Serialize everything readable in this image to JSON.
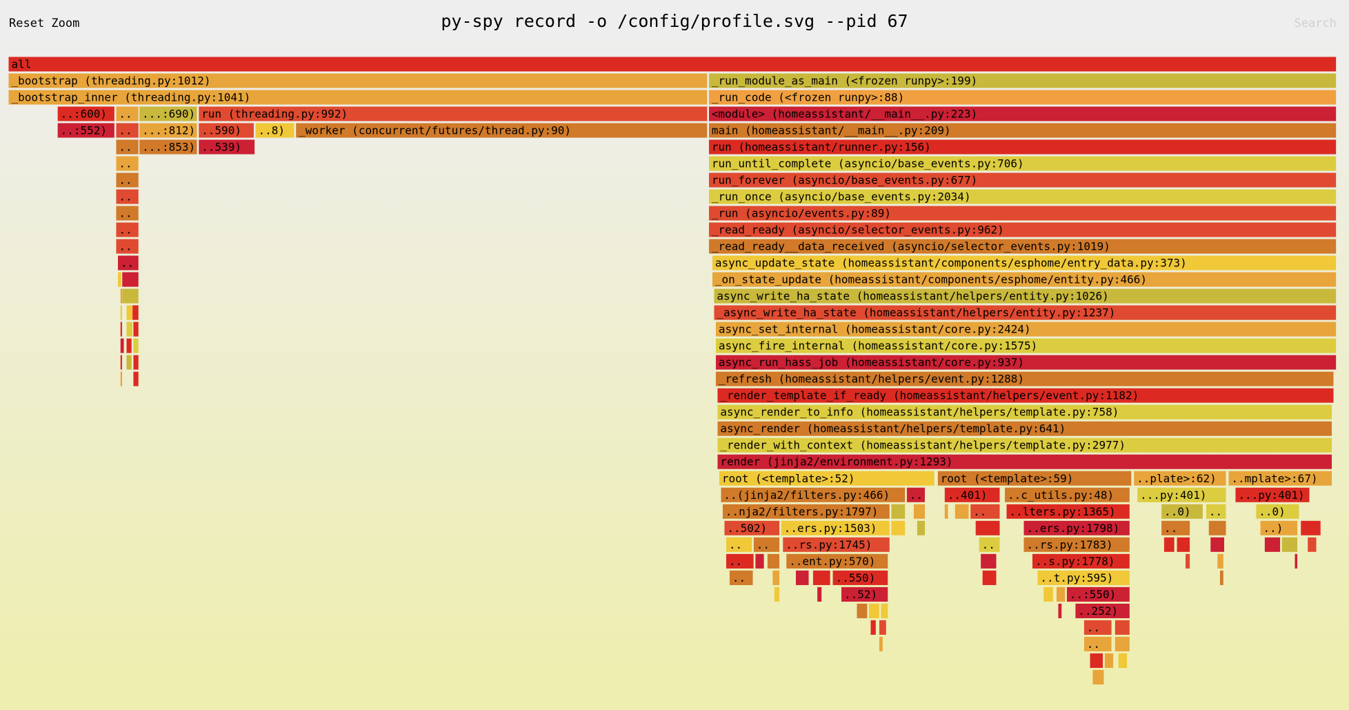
{
  "header": {
    "reset": "Reset Zoom",
    "title": "py-spy record -o /config/profile.svg --pid 67",
    "search": "Search"
  },
  "frames": [
    {
      "label": "all"
    },
    {
      "label": "_bootstrap (threading.py:1012)"
    },
    {
      "label": "_run_module_as_main (<frozen runpy>:199)"
    },
    {
      "label": "_bootstrap_inner (threading.py:1041)"
    },
    {
      "label": "_run_code (<frozen runpy>:88)"
    },
    {
      "label": "..:600)"
    },
    {
      "label": ".."
    },
    {
      "label": "...:690)"
    },
    {
      "label": "run (threading.py:992)"
    },
    {
      "label": "<module> (homeassistant/__main__.py:223)"
    },
    {
      "label": "..:552)"
    },
    {
      "label": ".."
    },
    {
      "label": "...:812)"
    },
    {
      "label": "..590)"
    },
    {
      "label": "..8)"
    },
    {
      "label": "_worker (concurrent/futures/thread.py:90)"
    },
    {
      "label": "main (homeassistant/__main__.py:209)"
    },
    {
      "label": ".."
    },
    {
      "label": "...:853)"
    },
    {
      "label": "..539)"
    },
    {
      "label": "run (homeassistant/runner.py:156)"
    },
    {
      "label": ".."
    },
    {
      "label": "run_until_complete (asyncio/base_events.py:706)"
    },
    {
      "label": ".."
    },
    {
      "label": "run_forever (asyncio/base_events.py:677)"
    },
    {
      "label": ".."
    },
    {
      "label": "_run_once (asyncio/base_events.py:2034)"
    },
    {
      "label": ".."
    },
    {
      "label": "_run (asyncio/events.py:89)"
    },
    {
      "label": ".."
    },
    {
      "label": "_read_ready (asyncio/selector_events.py:962)"
    },
    {
      "label": ".."
    },
    {
      "label": "_read_ready__data_received (asyncio/selector_events.py:1019)"
    },
    {
      "label": ".."
    },
    {
      "label": "async_update_state (homeassistant/components/esphome/entry_data.py:373)"
    },
    {
      "label": "_on_state_update (homeassistant/components/esphome/entity.py:466)"
    },
    {
      "label": "async_write_ha_state (homeassistant/helpers/entity.py:1026)"
    },
    {
      "label": "_async_write_ha_state (homeassistant/helpers/entity.py:1237)"
    },
    {
      "label": "async_set_internal (homeassistant/core.py:2424)"
    },
    {
      "label": "async_fire_internal (homeassistant/core.py:1575)"
    },
    {
      "label": "async_run_hass_job (homeassistant/core.py:937)"
    },
    {
      "label": "_refresh (homeassistant/helpers/event.py:1288)"
    },
    {
      "label": "_render_template_if_ready (homeassistant/helpers/event.py:1182)"
    },
    {
      "label": "async_render_to_info (homeassistant/helpers/template.py:758)"
    },
    {
      "label": "async_render (homeassistant/helpers/template.py:641)"
    },
    {
      "label": "_render_with_context (homeassistant/helpers/template.py:2977)"
    },
    {
      "label": "render (jinja2/environment.py:1293)"
    },
    {
      "label": "root (<template>:52)"
    },
    {
      "label": "root (<template>:59)"
    },
    {
      "label": "..plate>:62)"
    },
    {
      "label": "..mplate>:67)"
    },
    {
      "label": "..(jinja2/filters.py:466)"
    },
    {
      "label": ".."
    },
    {
      "label": "..401)"
    },
    {
      "label": "..c_utils.py:48)"
    },
    {
      "label": "...py:401)"
    },
    {
      "label": "...py:401)"
    },
    {
      "label": "..nja2/filters.py:1797)"
    },
    {
      "label": ".."
    },
    {
      "label": "..lters.py:1365)"
    },
    {
      "label": "..0)"
    },
    {
      "label": ".."
    },
    {
      "label": "..0)"
    },
    {
      "label": "..502)"
    },
    {
      "label": "..ers.py:1503)"
    },
    {
      "label": "..ers.py:1798)"
    },
    {
      "label": ".."
    },
    {
      "label": "..)"
    },
    {
      "label": ".."
    },
    {
      "label": ".."
    },
    {
      "label": "..rs.py:1745)"
    },
    {
      "label": ".."
    },
    {
      "label": "..rs.py:1783)"
    },
    {
      "label": ".."
    },
    {
      "label": "..ent.py:570)"
    },
    {
      "label": "..s.py:1778)"
    },
    {
      "label": ".."
    },
    {
      "label": "..550)"
    },
    {
      "label": "..t.py:595)"
    },
    {
      "label": "..52)"
    },
    {
      "label": "..:550)"
    },
    {
      "label": "..252)"
    },
    {
      "label": ".."
    },
    {
      "label": ".."
    }
  ]
}
